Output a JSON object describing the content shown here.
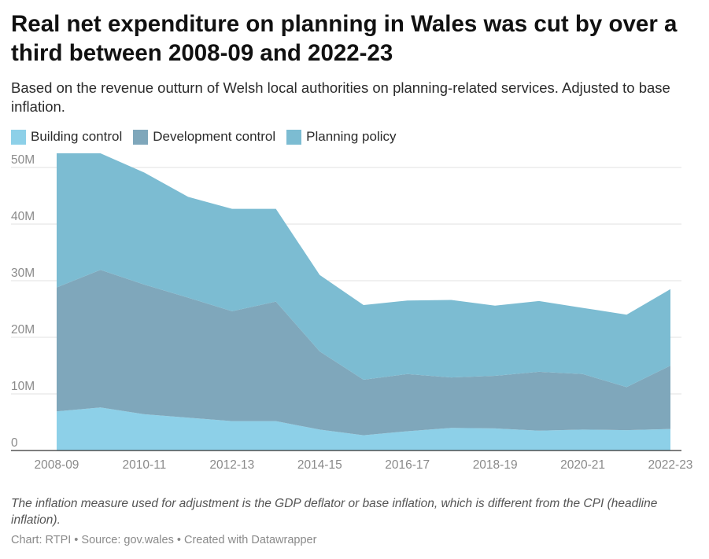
{
  "title": "Real net expenditure on planning in Wales was cut by over a third between 2008-09 and 2022-23",
  "subtitle": "Based on the revenue outturn of Welsh local authorities on planning-related services. Adjusted to base inflation.",
  "note": "The inflation measure used for adjustment is the GDP deflator or base inflation, which is different from the CPI (headline inflation).",
  "footer": {
    "chart_credit": "Chart: RTPI",
    "separator": " • ",
    "source": "Source: gov.wales",
    "created_with": "Created with Datawrapper"
  },
  "colors": {
    "building_control": "#8dd0e8",
    "development_control": "#7fa7bb",
    "planning_policy": "#7cbcd2",
    "gridline": "#e2e2e2",
    "axis": "#333333",
    "tick_label": "#8a8a8a"
  },
  "chart_data": {
    "type": "area",
    "stacked": true,
    "x": [
      "2008-09",
      "2009-10",
      "2010-11",
      "2011-12",
      "2012-13",
      "2013-14",
      "2014-15",
      "2015-16",
      "2016-17",
      "2017-18",
      "2018-19",
      "2019-20",
      "2020-21",
      "2021-22",
      "2022-23"
    ],
    "x_tick_labels": [
      "2008-09",
      "2010-11",
      "2012-13",
      "2014-15",
      "2016-17",
      "2018-19",
      "2020-21",
      "2022-23"
    ],
    "y_ticks": [
      0,
      10000000,
      20000000,
      30000000,
      40000000,
      50000000
    ],
    "y_tick_labels": [
      "0",
      "10M",
      "20M",
      "30M",
      "40M",
      "50M"
    ],
    "ylim": [
      0,
      52500000
    ],
    "grid": true,
    "legend_position": "top-left",
    "series": [
      {
        "name": "Building control",
        "color": "#8dd0e8",
        "values": [
          6900000,
          7600000,
          6400000,
          5800000,
          5200000,
          5200000,
          3700000,
          2700000,
          3400000,
          4000000,
          3900000,
          3500000,
          3700000,
          3600000,
          3800000
        ]
      },
      {
        "name": "Development control",
        "color": "#7fa7bb",
        "values": [
          21900000,
          24300000,
          22900000,
          21200000,
          19400000,
          21100000,
          13800000,
          9800000,
          10100000,
          8900000,
          9300000,
          10400000,
          9800000,
          7600000,
          11200000
        ]
      },
      {
        "name": "Planning policy",
        "color": "#7cbcd2",
        "values": [
          23700000,
          20600000,
          19800000,
          17800000,
          18100000,
          16400000,
          13500000,
          13200000,
          13000000,
          13700000,
          12400000,
          12500000,
          11700000,
          12800000,
          13500000
        ]
      }
    ]
  }
}
